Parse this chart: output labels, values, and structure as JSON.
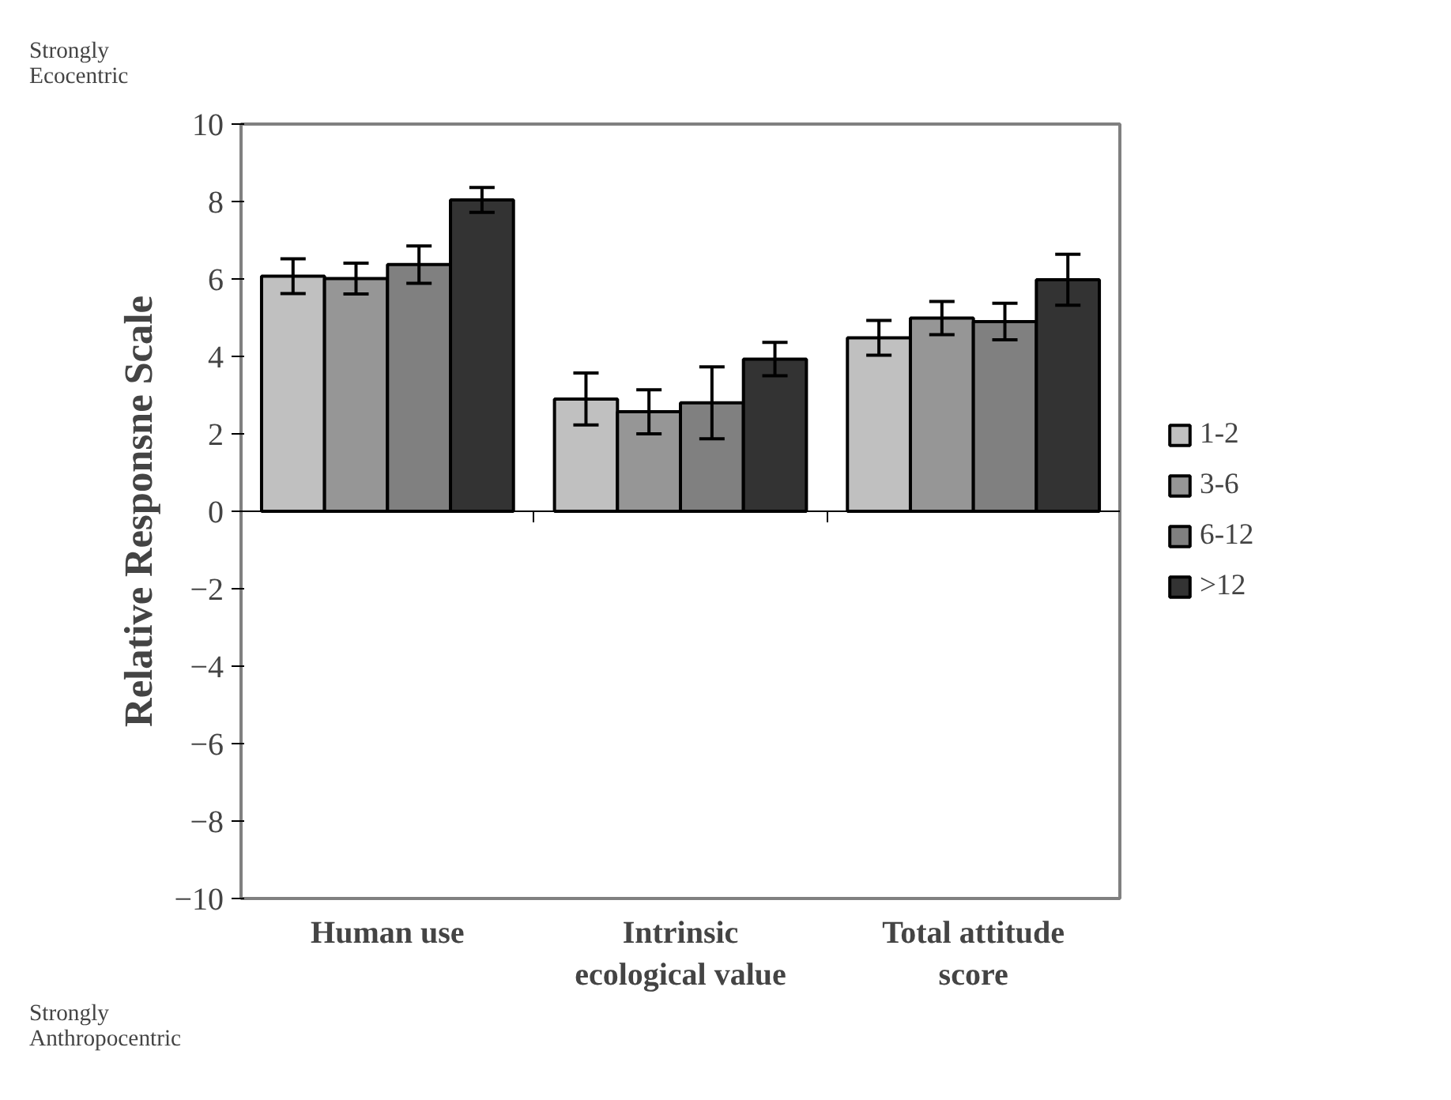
{
  "chart_data": {
    "type": "bar",
    "ylabel": "Relative Responsne Scale",
    "categories": [
      "Human use",
      "Intrinsic\necological value",
      "Total attitude\nscore"
    ],
    "series": [
      {
        "name": "1-2",
        "color": "#c0c0c0",
        "values": [
          6.07,
          2.9,
          4.48
        ],
        "errors": [
          0.45,
          0.67,
          0.45
        ]
      },
      {
        "name": "3-6",
        "color": "#969696",
        "values": [
          6.01,
          2.57,
          4.99
        ],
        "errors": [
          0.4,
          0.57,
          0.43
        ]
      },
      {
        "name": "6-12",
        "color": "#808080",
        "values": [
          6.37,
          2.8,
          4.9
        ],
        "errors": [
          0.48,
          0.93,
          0.47
        ]
      },
      {
        "name": ">12",
        "color": "#333333",
        "values": [
          8.04,
          3.93,
          5.98
        ],
        "errors": [
          0.32,
          0.43,
          0.66
        ]
      }
    ],
    "ylim": [
      -10,
      10
    ],
    "yticks": [
      -10,
      -8,
      -6,
      -4,
      -2,
      0,
      2,
      4,
      6,
      8,
      10
    ],
    "annotations": [
      "Strongly\nEcocentric",
      "Strongly\nAnthropocentric"
    ],
    "legend": "right"
  }
}
